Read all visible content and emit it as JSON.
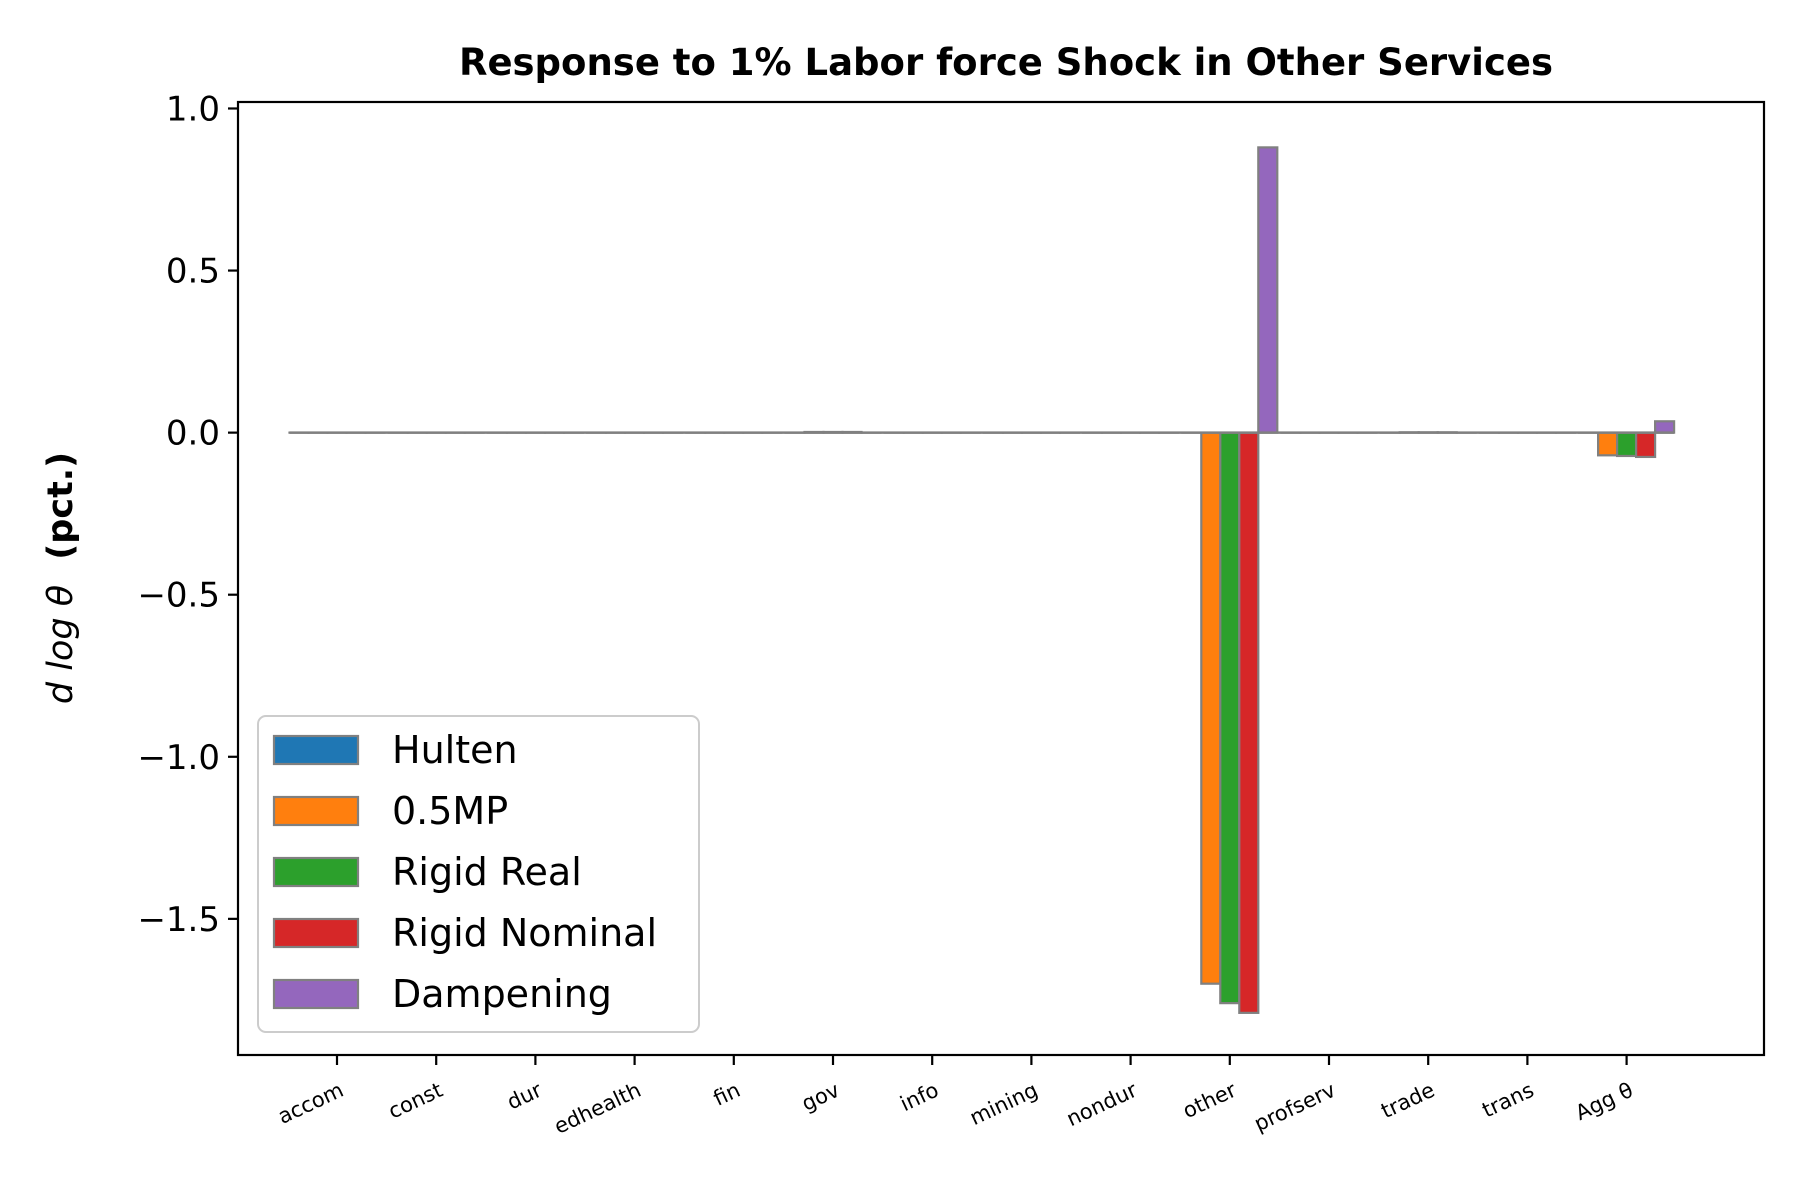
{
  "chart_data": {
    "type": "bar",
    "title": "Response to 1% Labor force Shock in Other Services",
    "ylabel_math": "d log θ",
    "ylabel_bold": "(pct.)",
    "xlabel": "",
    "ylim": [
      -1.92,
      1.02
    ],
    "yticks": [
      1.0,
      0.5,
      0.0,
      -0.5,
      -1.0,
      -1.5
    ],
    "ytick_labels": [
      "1.0",
      "0.5",
      "0.0",
      "−0.5",
      "−1.0",
      "−1.5"
    ],
    "categories": [
      "accom",
      "const",
      "dur",
      "edhealth",
      "fin",
      "gov",
      "info",
      "mining",
      "nondur",
      "other",
      "profserv",
      "trade",
      "trans",
      "Agg θ"
    ],
    "series": [
      {
        "name": "Hulten",
        "color": "#1f77b4",
        "values": [
          0,
          0,
          0,
          0,
          0,
          0,
          0,
          0,
          0,
          0,
          0,
          0,
          0,
          0
        ]
      },
      {
        "name": "0.5MP",
        "color": "#ff7f0e",
        "values": [
          0,
          0,
          0,
          0,
          0,
          0.002,
          0,
          0,
          0,
          -1.7,
          0,
          0.001,
          0,
          -0.07
        ]
      },
      {
        "name": "Rigid Real",
        "color": "#2ca02c",
        "values": [
          0,
          0,
          0,
          0,
          0,
          0.002,
          0,
          0,
          0,
          -1.76,
          0,
          0.001,
          0,
          -0.072
        ]
      },
      {
        "name": "Rigid Nominal",
        "color": "#d62728",
        "values": [
          0,
          0,
          0,
          0,
          0,
          0.002,
          0,
          0,
          0,
          -1.79,
          0,
          0.001,
          0,
          -0.075
        ]
      },
      {
        "name": "Dampening",
        "color": "#9467bd",
        "values": [
          0,
          0,
          0,
          0,
          0,
          0,
          0,
          0,
          0,
          0.88,
          0,
          0,
          0,
          0.035
        ]
      }
    ],
    "legend_position": "lower-left",
    "edge_color": "#808080",
    "grid": false
  }
}
